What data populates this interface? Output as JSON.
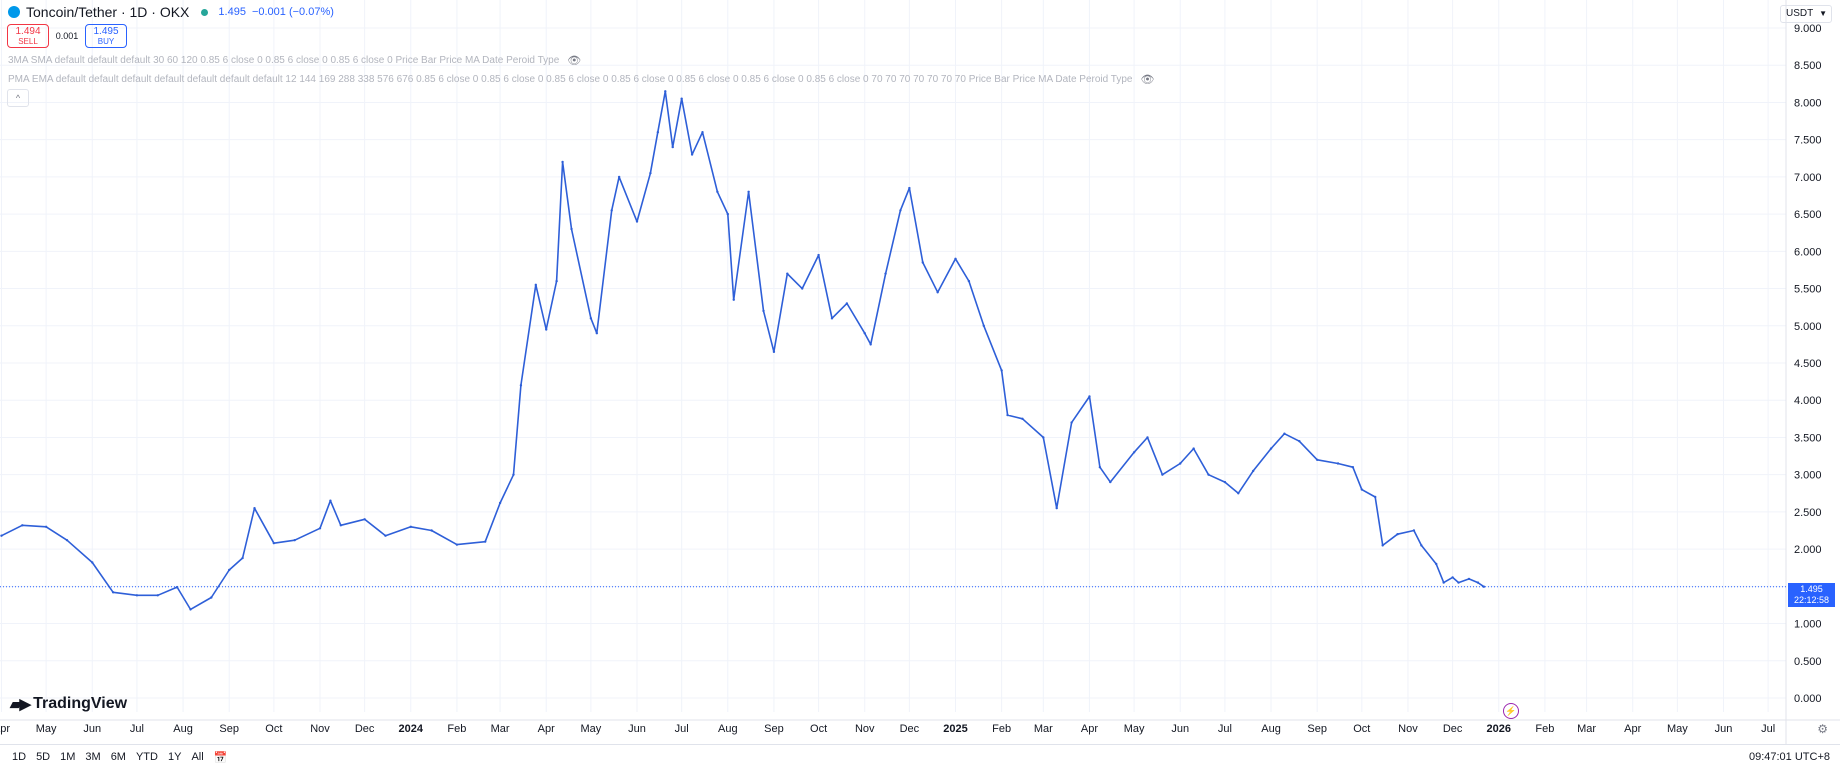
{
  "header": {
    "symbol": "Toncoin/Tether · 1D · OKX",
    "last_price": "1.495",
    "change": "−0.001 (−0.07%)",
    "sell_price": "1.494",
    "sell_label": "SELL",
    "spread": "0.001",
    "buy_price": "1.495",
    "buy_label": "BUY"
  },
  "indicators": [
    {
      "text": "3MA SMA default default default 30 60 120 0.85 6 close 0 0.85 6 close 0 0.85 6 close 0 Price Bar Price MA Date Peroid Type"
    },
    {
      "text": "PMA EMA default default default default default default default 12 144 169 288 338 576 676 0.85 6 close 0 0.85 6 close 0 0.85 6 close 0 0.85 6 close 0 0.85 6 close 0 0.85 6 close 0 0.85 6 close 0 70 70 70 70 70 70 70 Price Bar Price MA Date Peroid Type"
    }
  ],
  "currency_selector": "USDT",
  "price_tag": {
    "price": "1.495",
    "countdown": "22:12:58"
  },
  "logo_text": "TradingView",
  "ranges": [
    "1D",
    "5D",
    "1M",
    "3M",
    "6M",
    "YTD",
    "1Y",
    "All"
  ],
  "clock": "09:47:01 UTC+8",
  "colors": {
    "line": "#2e5fd8",
    "accent": "#2962ff",
    "sell": "#f23645",
    "grid": "#f0f3fa"
  },
  "chart_data": {
    "type": "line",
    "series": [
      {
        "values": [
          [
            "2023-04-01",
            2.18
          ],
          [
            "2023-04-15",
            2.32
          ],
          [
            "2023-05-01",
            2.3
          ],
          [
            "2023-05-15",
            2.12
          ],
          [
            "2023-06-01",
            1.82
          ],
          [
            "2023-06-15",
            1.42
          ],
          [
            "2023-07-01",
            1.38
          ],
          [
            "2023-07-15",
            1.38
          ],
          [
            "2023-07-28",
            1.49
          ],
          [
            "2023-08-06",
            1.19
          ],
          [
            "2023-08-20",
            1.35
          ],
          [
            "2023-09-01",
            1.72
          ],
          [
            "2023-09-10",
            1.88
          ],
          [
            "2023-09-18",
            2.55
          ],
          [
            "2023-10-01",
            2.08
          ],
          [
            "2023-10-15",
            2.12
          ],
          [
            "2023-11-01",
            2.28
          ],
          [
            "2023-11-08",
            2.65
          ],
          [
            "2023-11-15",
            2.32
          ],
          [
            "2023-12-01",
            2.4
          ],
          [
            "2023-12-15",
            2.18
          ],
          [
            "2024-01-01",
            2.3
          ],
          [
            "2024-01-15",
            2.25
          ],
          [
            "2024-02-01",
            2.06
          ],
          [
            "2024-02-20",
            2.1
          ],
          [
            "2024-03-01",
            2.62
          ],
          [
            "2024-03-10",
            3.0
          ],
          [
            "2024-03-15",
            4.2
          ],
          [
            "2024-03-25",
            5.55
          ],
          [
            "2024-04-01",
            4.95
          ],
          [
            "2024-04-08",
            5.6
          ],
          [
            "2024-04-12",
            7.2
          ],
          [
            "2024-04-18",
            6.3
          ],
          [
            "2024-05-01",
            5.1
          ],
          [
            "2024-05-05",
            4.9
          ],
          [
            "2024-05-15",
            6.55
          ],
          [
            "2024-05-20",
            7.0
          ],
          [
            "2024-06-01",
            6.4
          ],
          [
            "2024-06-10",
            7.05
          ],
          [
            "2024-06-15",
            7.6
          ],
          [
            "2024-06-20",
            8.15
          ],
          [
            "2024-06-25",
            7.4
          ],
          [
            "2024-07-01",
            8.05
          ],
          [
            "2024-07-08",
            7.3
          ],
          [
            "2024-07-15",
            7.6
          ],
          [
            "2024-07-25",
            6.8
          ],
          [
            "2024-08-01",
            6.5
          ],
          [
            "2024-08-05",
            5.35
          ],
          [
            "2024-08-15",
            6.8
          ],
          [
            "2024-08-25",
            5.2
          ],
          [
            "2024-09-01",
            4.65
          ],
          [
            "2024-09-10",
            5.7
          ],
          [
            "2024-09-20",
            5.5
          ],
          [
            "2024-10-01",
            5.95
          ],
          [
            "2024-10-10",
            5.1
          ],
          [
            "2024-10-20",
            5.3
          ],
          [
            "2024-11-01",
            4.9
          ],
          [
            "2024-11-05",
            4.75
          ],
          [
            "2024-11-15",
            5.7
          ],
          [
            "2024-11-25",
            6.55
          ],
          [
            "2024-12-01",
            6.85
          ],
          [
            "2024-12-10",
            5.85
          ],
          [
            "2024-12-20",
            5.45
          ],
          [
            "2025-01-01",
            5.9
          ],
          [
            "2025-01-10",
            5.6
          ],
          [
            "2025-01-20",
            5.0
          ],
          [
            "2025-02-01",
            4.4
          ],
          [
            "2025-02-05",
            3.8
          ],
          [
            "2025-02-15",
            3.75
          ],
          [
            "2025-03-01",
            3.5
          ],
          [
            "2025-03-10",
            2.55
          ],
          [
            "2025-03-20",
            3.7
          ],
          [
            "2025-04-01",
            4.05
          ],
          [
            "2025-04-08",
            3.1
          ],
          [
            "2025-04-15",
            2.9
          ],
          [
            "2025-05-01",
            3.3
          ],
          [
            "2025-05-10",
            3.5
          ],
          [
            "2025-05-20",
            3.0
          ],
          [
            "2025-06-01",
            3.15
          ],
          [
            "2025-06-10",
            3.35
          ],
          [
            "2025-06-20",
            3.0
          ],
          [
            "2025-07-01",
            2.9
          ],
          [
            "2025-07-10",
            2.75
          ],
          [
            "2025-07-20",
            3.05
          ],
          [
            "2025-08-01",
            3.35
          ],
          [
            "2025-08-10",
            3.55
          ],
          [
            "2025-08-20",
            3.45
          ],
          [
            "2025-09-01",
            3.2
          ],
          [
            "2025-09-15",
            3.15
          ],
          [
            "2025-09-25",
            3.1
          ],
          [
            "2025-10-01",
            2.8
          ],
          [
            "2025-10-10",
            2.7
          ],
          [
            "2025-10-15",
            2.05
          ],
          [
            "2025-10-25",
            2.2
          ],
          [
            "2025-11-05",
            2.25
          ],
          [
            "2025-11-10",
            2.05
          ],
          [
            "2025-11-20",
            1.8
          ],
          [
            "2025-11-25",
            1.55
          ],
          [
            "2025-12-01",
            1.62
          ],
          [
            "2025-12-05",
            1.55
          ],
          [
            "2025-12-12",
            1.6
          ],
          [
            "2025-12-18",
            1.55
          ],
          [
            "2025-12-22",
            1.495
          ]
        ]
      }
    ],
    "x_ticks": [
      [
        "2023-04-01",
        "Apr"
      ],
      [
        "2023-05-01",
        "May"
      ],
      [
        "2023-06-01",
        "Jun"
      ],
      [
        "2023-07-01",
        "Jul"
      ],
      [
        "2023-08-01",
        "Aug"
      ],
      [
        "2023-09-01",
        "Sep"
      ],
      [
        "2023-10-01",
        "Oct"
      ],
      [
        "2023-11-01",
        "Nov"
      ],
      [
        "2023-12-01",
        "Dec"
      ],
      [
        "2024-01-01",
        "2024"
      ],
      [
        "2024-02-01",
        "Feb"
      ],
      [
        "2024-03-01",
        "Mar"
      ],
      [
        "2024-04-01",
        "Apr"
      ],
      [
        "2024-05-01",
        "May"
      ],
      [
        "2024-06-01",
        "Jun"
      ],
      [
        "2024-07-01",
        "Jul"
      ],
      [
        "2024-08-01",
        "Aug"
      ],
      [
        "2024-09-01",
        "Sep"
      ],
      [
        "2024-10-01",
        "Oct"
      ],
      [
        "2024-11-01",
        "Nov"
      ],
      [
        "2024-12-01",
        "Dec"
      ],
      [
        "2025-01-01",
        "2025"
      ],
      [
        "2025-02-01",
        "Feb"
      ],
      [
        "2025-03-01",
        "Mar"
      ],
      [
        "2025-04-01",
        "Apr"
      ],
      [
        "2025-05-01",
        "May"
      ],
      [
        "2025-06-01",
        "Jun"
      ],
      [
        "2025-07-01",
        "Jul"
      ],
      [
        "2025-08-01",
        "Aug"
      ],
      [
        "2025-09-01",
        "Sep"
      ],
      [
        "2025-10-01",
        "Oct"
      ],
      [
        "2025-11-01",
        "Nov"
      ],
      [
        "2025-12-01",
        "Dec"
      ],
      [
        "2026-01-01",
        "2026"
      ],
      [
        "2026-02-01",
        "Feb"
      ],
      [
        "2026-03-01",
        "Mar"
      ],
      [
        "2026-04-01",
        "Apr"
      ],
      [
        "2026-05-01",
        "May"
      ],
      [
        "2026-06-01",
        "Jun"
      ],
      [
        "2026-07-01",
        "Jul"
      ]
    ],
    "x_range": [
      "2023-03-31",
      "2026-07-13"
    ],
    "y_ticks": [
      0.0,
      0.5,
      1.0,
      1.5,
      2.0,
      2.5,
      3.0,
      3.5,
      4.0,
      4.5,
      5.0,
      5.5,
      6.0,
      6.5,
      7.0,
      7.5,
      8.0,
      8.5,
      9.0
    ],
    "y_tick_labels": [
      "0.000",
      "0.500",
      "1.000",
      "1.500",
      "2.000",
      "2.500",
      "3.000",
      "3.500",
      "4.000",
      "4.500",
      "5.000",
      "5.500",
      "6.000",
      "6.500",
      "7.000",
      "7.500",
      "8.000",
      "8.500",
      "9.000"
    ],
    "ylim": [
      0.0,
      9.0
    ],
    "grid": true,
    "current_price_line": 1.495
  }
}
